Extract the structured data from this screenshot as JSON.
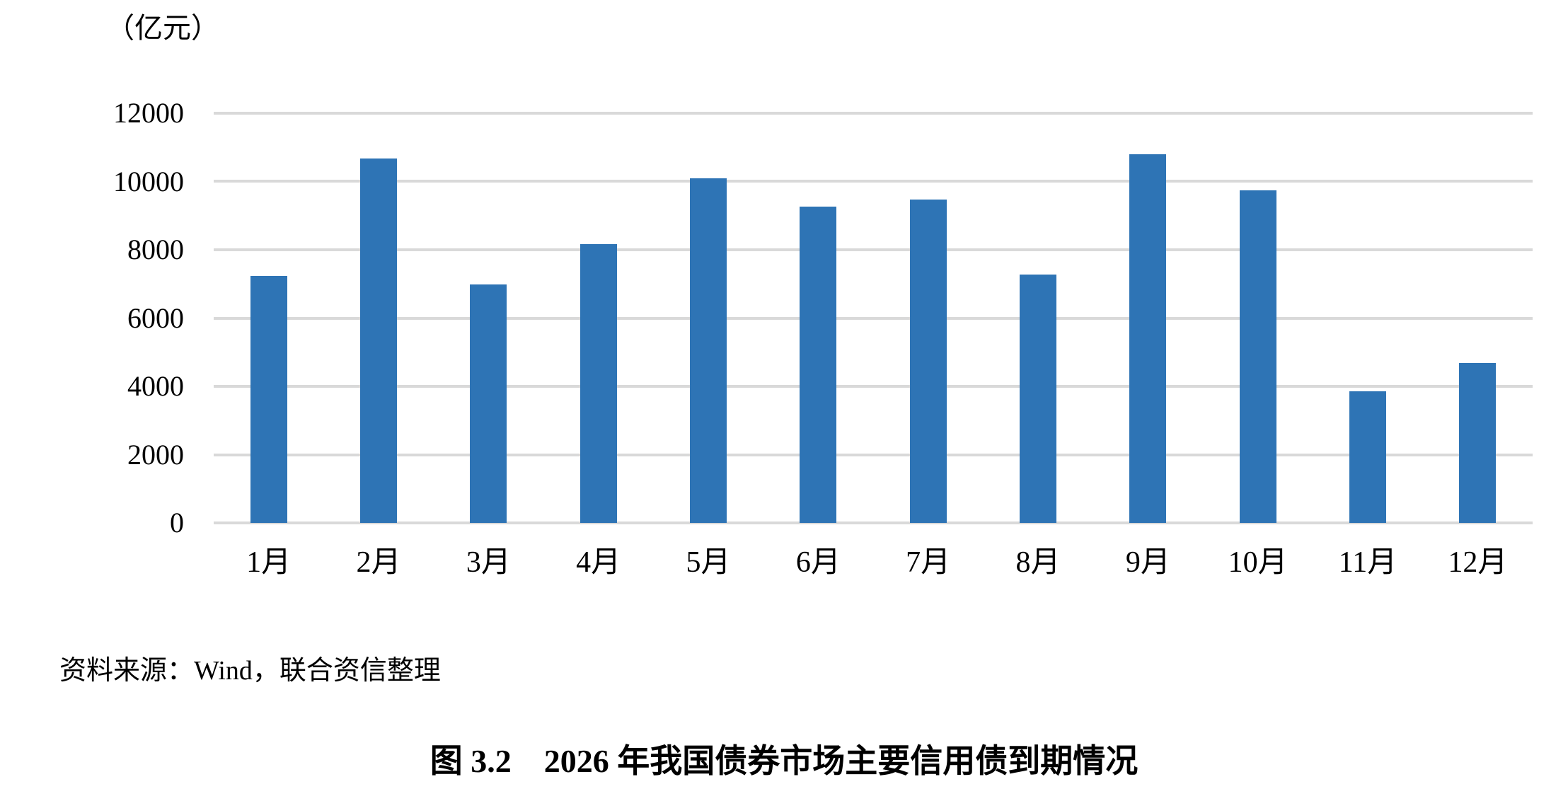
{
  "unit_label": "（亿元）",
  "source_note": "资料来源：Wind，联合资信整理",
  "caption": "图 3.2　2026 年我国债券市场主要信用债到期情况",
  "chart_data": {
    "type": "bar",
    "title": "图 3.2 2026 年我国债券市场主要信用债到期情况",
    "categories": [
      "1月",
      "2月",
      "3月",
      "4月",
      "5月",
      "6月",
      "7月",
      "8月",
      "9月",
      "10月",
      "11月",
      "12月"
    ],
    "values": [
      7230,
      10670,
      6980,
      8160,
      10100,
      9260,
      9470,
      7270,
      10790,
      9740,
      3850,
      4690
    ],
    "xlabel": "",
    "ylabel": "亿元",
    "ylim": [
      0,
      12000
    ],
    "yticks": [
      0,
      2000,
      4000,
      6000,
      8000,
      10000,
      12000
    ],
    "grid": true,
    "legend": "none",
    "bar_color": "#2E74B5",
    "gridline_color": "#D9D9D9"
  }
}
